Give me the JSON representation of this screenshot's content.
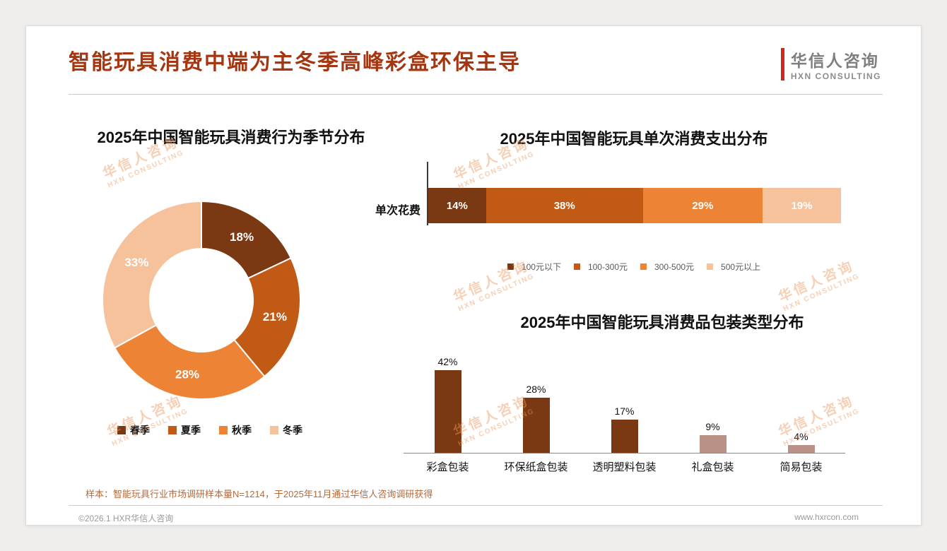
{
  "page": {
    "title": "智能玩具消费中端为主冬季高峰彩盒环保主导",
    "logo": {
      "name": "华信人咨询",
      "subtitle": "HXN CONSULTING"
    },
    "watermark": {
      "line1": "华信人咨询",
      "line2": "HXN CONSULTING"
    },
    "sample_note": "样本：智能玩具行业市场调研样本量N=1214，于2025年11月通过华信人咨询调研获得",
    "footer": {
      "left": "©2026.1 HXR华信人咨询",
      "right": "www.hxrcon.com"
    }
  },
  "colors": {
    "title_red": "#A43711",
    "logo_red": "#CE2A1A",
    "palette_dark": "#7B3913",
    "palette_rust": "#C05A15",
    "palette_orange": "#ED8335",
    "palette_peach": "#F5C29C",
    "bar_light": "#BA9186"
  },
  "chart_data": [
    {
      "id": "season_donut",
      "type": "pie",
      "subtype": "donut",
      "title": "2025年中国智能玩具消费行为季节分布",
      "categories": [
        "春季",
        "夏季",
        "秋季",
        "冬季"
      ],
      "values": [
        18,
        21,
        28,
        33
      ],
      "unit": "%",
      "colors": [
        "#7B3913",
        "#C05A15",
        "#ED8335",
        "#F5C29C"
      ],
      "legend_position": "bottom"
    },
    {
      "id": "spend_stacked_bar",
      "type": "bar",
      "subtype": "stacked-horizontal",
      "title": "2025年中国智能玩具单次消费支出分布",
      "row_label": "单次花费",
      "categories": [
        "100元以下",
        "100-300元",
        "300-500元",
        "500元以上"
      ],
      "values": [
        14,
        38,
        29,
        19
      ],
      "unit": "%",
      "colors": [
        "#7B3913",
        "#C05A15",
        "#ED8335",
        "#F5C29C"
      ],
      "legend_position": "bottom"
    },
    {
      "id": "packaging_bar",
      "type": "bar",
      "subtype": "vertical",
      "title": "2025年中国智能玩具消费品包装类型分布",
      "categories": [
        "彩盒包装",
        "环保纸盒包装",
        "透明塑料包装",
        "礼盒包装",
        "简易包装"
      ],
      "values": [
        42,
        28,
        17,
        9,
        4
      ],
      "unit": "%",
      "colors": [
        "#7B3913",
        "#7B3913",
        "#7B3913",
        "#BA9186",
        "#BA9186"
      ],
      "ylim": [
        0,
        50
      ],
      "grid": false
    }
  ]
}
